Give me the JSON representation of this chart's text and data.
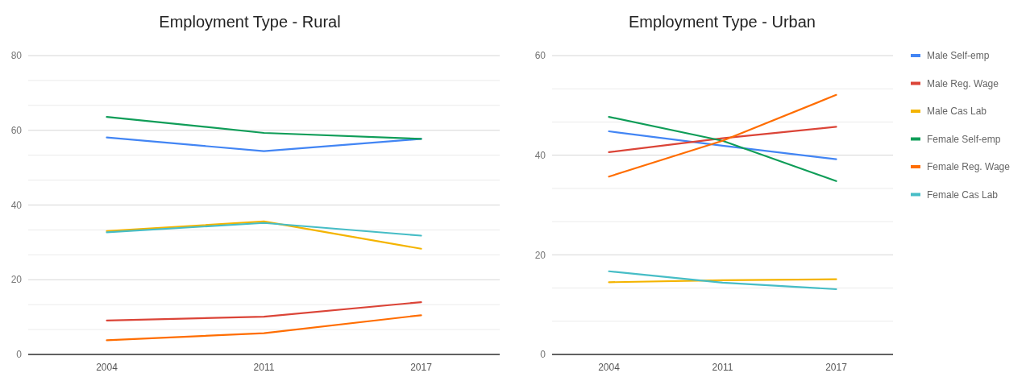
{
  "chart_data": [
    {
      "type": "line",
      "title": "Employment Type - Rural",
      "categories": [
        "2004",
        "2011",
        "2017"
      ],
      "ylim": [
        0,
        80
      ],
      "yticks": [
        0,
        {
          "value": 6.67,
          "label": null
        },
        {
          "value": 13.33,
          "label": null
        },
        20,
        {
          "value": 26.67,
          "label": null
        },
        {
          "value": 33.33,
          "label": null
        },
        40,
        {
          "value": 46.67,
          "label": null
        },
        {
          "value": 53.33,
          "label": null
        },
        60,
        {
          "value": 66.67,
          "label": null
        },
        {
          "value": 73.33,
          "label": null
        },
        80
      ],
      "grid": "y",
      "legend": false,
      "series": [
        {
          "color": "#4285f4",
          "values": [
            58.1,
            54.4,
            57.7
          ]
        },
        {
          "color": "#db4437",
          "values": [
            9.1,
            10.1,
            14.0
          ]
        },
        {
          "color": "#f4b400",
          "values": [
            33.0,
            35.6,
            28.3
          ]
        },
        {
          "color": "#0f9d58",
          "values": [
            63.6,
            59.3,
            57.7
          ]
        },
        {
          "color": "#ff6d00",
          "values": [
            3.8,
            5.7,
            10.5
          ]
        },
        {
          "color": "#46bdc6",
          "values": [
            32.7,
            35.2,
            31.8
          ]
        }
      ]
    },
    {
      "type": "line",
      "title": "Employment Type - Urban",
      "categories": [
        "2004",
        "2011",
        "2017"
      ],
      "ylim": [
        0,
        60
      ],
      "yticks": [
        0,
        {
          "value": 6.67,
          "label": null
        },
        {
          "value": 13.33,
          "label": null
        },
        20,
        {
          "value": 26.67,
          "label": null
        },
        {
          "value": 33.33,
          "label": null
        },
        40,
        {
          "value": 46.67,
          "label": null
        },
        {
          "value": 53.33,
          "label": null
        },
        60
      ],
      "grid": "y",
      "legend": "right",
      "series": [
        {
          "name": "Male Self-emp",
          "color": "#4285f4",
          "values": [
            44.8,
            41.9,
            39.2
          ]
        },
        {
          "name": "Male Reg. Wage",
          "color": "#db4437",
          "values": [
            40.6,
            43.4,
            45.7
          ]
        },
        {
          "name": "Male Cas Lab",
          "color": "#f4b400",
          "values": [
            14.5,
            14.9,
            15.1
          ]
        },
        {
          "name": "Female Self-emp",
          "color": "#0f9d58",
          "values": [
            47.7,
            42.9,
            34.8
          ]
        },
        {
          "name": "Female Reg. Wage",
          "color": "#ff6d00",
          "values": [
            35.7,
            42.9,
            52.1
          ]
        },
        {
          "name": "Female Cas Lab",
          "color": "#46bdc6",
          "values": [
            16.7,
            14.4,
            13.1
          ]
        }
      ]
    }
  ]
}
